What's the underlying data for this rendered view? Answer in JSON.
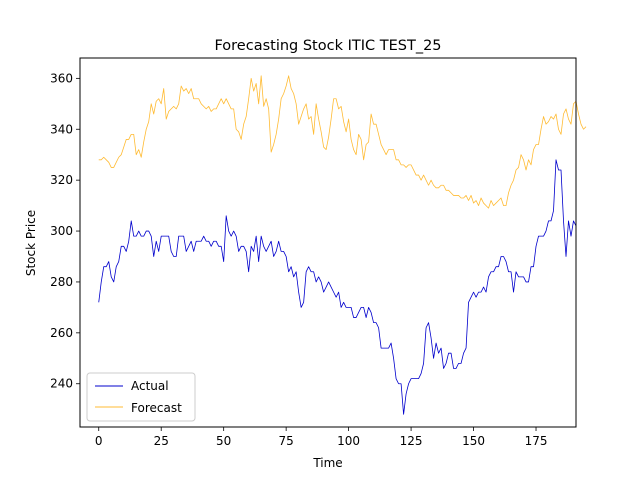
{
  "chart_data": {
    "type": "line",
    "title": "Forecasting Stock ITIC TEST_25",
    "xlabel": "Time",
    "ylabel": "Stock Price",
    "xlim": [
      -7.5,
      191
    ],
    "ylim": [
      223,
      368
    ],
    "xticks": [
      0,
      25,
      50,
      75,
      100,
      125,
      150,
      175
    ],
    "yticks": [
      240,
      260,
      280,
      300,
      320,
      340,
      360
    ],
    "grid": false,
    "legend": "lower-left",
    "series": [
      {
        "name": "Actual",
        "color": "#0000cc",
        "values": [
          272,
          280,
          286,
          286,
          288,
          282,
          280,
          286,
          288,
          294,
          294,
          292,
          296,
          304,
          298,
          298,
          300,
          298,
          298,
          300,
          300,
          298,
          290,
          296,
          292,
          298,
          298,
          298,
          298,
          292,
          290,
          290,
          298,
          298,
          298,
          292,
          294,
          296,
          292,
          296,
          296,
          296,
          298,
          296,
          296,
          294,
          296,
          296,
          294,
          294,
          288,
          306,
          300,
          298,
          300,
          298,
          292,
          294,
          294,
          292,
          284,
          294,
          292,
          298,
          288,
          298,
          294,
          292,
          294,
          296,
          290,
          292,
          296,
          292,
          292,
          290,
          284,
          286,
          282,
          284,
          276,
          270,
          272,
          284,
          286,
          284,
          284,
          280,
          282,
          280,
          276,
          278,
          280,
          278,
          276,
          274,
          276,
          270,
          272,
          270,
          270,
          270,
          266,
          266,
          268,
          270,
          270,
          266,
          270,
          268,
          264,
          264,
          262,
          254,
          254,
          254,
          254,
          256,
          250,
          242,
          240,
          240,
          228,
          236,
          240,
          242,
          242,
          242,
          242,
          244,
          248,
          262,
          264,
          258,
          250,
          256,
          252,
          254,
          246,
          248,
          252,
          252,
          246,
          246,
          248,
          248,
          252,
          254,
          272,
          274,
          276,
          274,
          276,
          276,
          278,
          276,
          282,
          284,
          284,
          286,
          286,
          290,
          290,
          288,
          284,
          284,
          276,
          284,
          282,
          282,
          282,
          280,
          280,
          286,
          286,
          294,
          298,
          298,
          298,
          300,
          304,
          304,
          308,
          328,
          324,
          324,
          304,
          290,
          304,
          298,
          304,
          302
        ],
        "x_start": 0
      },
      {
        "name": "Forecast",
        "color": "#ffaa00",
        "values": [
          328,
          328,
          329,
          328,
          327,
          325,
          325,
          327,
          329,
          330,
          333,
          336,
          336,
          338,
          338,
          330,
          332,
          329,
          335,
          340,
          343,
          350,
          346,
          351,
          352,
          350,
          356,
          344,
          347,
          348,
          349,
          348,
          350,
          357,
          355,
          356,
          354,
          356,
          352,
          352,
          352,
          350,
          349,
          348,
          349,
          347,
          348,
          348,
          350,
          352,
          350,
          352,
          350,
          348,
          348,
          340,
          339,
          336,
          342,
          345,
          352,
          360,
          355,
          358,
          350,
          361,
          349,
          352,
          348,
          331,
          334,
          338,
          344,
          352,
          354,
          357,
          361,
          356,
          354,
          350,
          342,
          345,
          348,
          350,
          344,
          345,
          338,
          350,
          344,
          339,
          333,
          332,
          337,
          344,
          352,
          352,
          348,
          349,
          343,
          339,
          344,
          336,
          332,
          330,
          338,
          336,
          328,
          334,
          335,
          346,
          342,
          342,
          338,
          334,
          332,
          330,
          332,
          332,
          332,
          328,
          328,
          326,
          326,
          325,
          326,
          326,
          324,
          322,
          322,
          320,
          322,
          320,
          318,
          320,
          318,
          317,
          317,
          318,
          318,
          316,
          316,
          315,
          314,
          314,
          314,
          313,
          313,
          314,
          312,
          314,
          311,
          312,
          310,
          313,
          311,
          310,
          309,
          312,
          310,
          311,
          312,
          313,
          310,
          310,
          315,
          318,
          320,
          324,
          325,
          330,
          328,
          324,
          328,
          326,
          332,
          334,
          334,
          340,
          345,
          342,
          343,
          345,
          344,
          346,
          340,
          338,
          346,
          348,
          344,
          342,
          350,
          351,
          346,
          342,
          340,
          341
        ]
      }
    ]
  }
}
